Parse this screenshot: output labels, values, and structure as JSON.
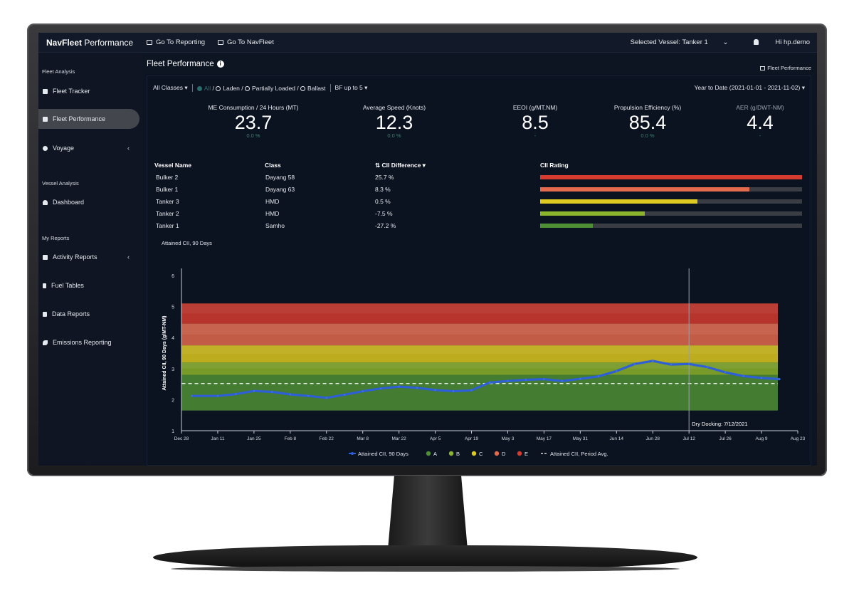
{
  "colors": {
    "A": "#4f8f36",
    "B": "#8bb32b",
    "C": "#ddc91f",
    "D": "#e46a4d",
    "E": "#d63b2f",
    "series": "#2e5fd6"
  },
  "topbar": {
    "brand_bold": "NavFleet",
    "brand_rest": " Performance",
    "link_reporting": "Go To Reporting",
    "link_navfleet": "Go To NavFleet",
    "selected_vessel": "Selected Vessel: Tanker 1",
    "user": "Hi hp.demo"
  },
  "sidebar": {
    "section_fleet": "Fleet Analysis",
    "fleet_tracker": "Fleet Tracker",
    "fleet_performance": "Fleet Performance",
    "voyage": "Voyage",
    "section_vessel": "Vessel Analysis",
    "dashboard": "Dashboard",
    "section_reports": "My Reports",
    "activity_reports": "Activity Reports",
    "fuel_tables": "Fuel Tables",
    "data_reports": "Data Reports",
    "emissions_reporting": "Emissions Reporting"
  },
  "main": {
    "title": "Fleet Performance",
    "top_link": "Fleet Performance",
    "filters": {
      "classes": "All Classes",
      "all": "All",
      "laden": "Laden",
      "partially_loaded": "Partially Loaded",
      "ballast": "Ballast",
      "bf": "BF up to 5",
      "date_range": "Year to Date (2021-01-01 - 2021-11-02)"
    },
    "kpis": [
      {
        "label": "ME Consumption / 24 Hours (MT)",
        "value": "23.7",
        "change": "0.0 %"
      },
      {
        "label": "Average Speed (Knots)",
        "value": "12.3",
        "change": "0.0 %"
      },
      {
        "label": "EEOI (g/MT.NM)",
        "value": "8.5",
        "change": "-"
      },
      {
        "label": "Propulsion Efficiency (%)",
        "value": "85.4",
        "change": "0.0 %"
      },
      {
        "label": "AER (g/DWT-NM)",
        "value": "4.4",
        "change": "-"
      }
    ],
    "table": {
      "headers": {
        "vessel": "Vessel Name",
        "class": "Class",
        "diff": "CII Difference",
        "rating": "CII Rating"
      },
      "rows": [
        {
          "vessel": "Bulker 2",
          "class": "Dayang 58",
          "diff": "25.7 %",
          "rating_fraction": 1.0,
          "rating": "E"
        },
        {
          "vessel": "Bulker 1",
          "class": "Dayang 63",
          "diff": "8.3 %",
          "rating_fraction": 0.8,
          "rating": "D"
        },
        {
          "vessel": "Tanker 3",
          "class": "HMD",
          "diff": "0.5 %",
          "rating_fraction": 0.6,
          "rating": "C"
        },
        {
          "vessel": "Tanker 2",
          "class": "HMD",
          "diff": "-7.5 %",
          "rating_fraction": 0.4,
          "rating": "B"
        },
        {
          "vessel": "Tanker 1",
          "class": "Samho",
          "diff": "-27.2 %",
          "rating_fraction": 0.2,
          "rating": "A"
        }
      ]
    }
  },
  "chart_data": {
    "type": "line",
    "title": "Attained CII, 90 Days",
    "ylabel": "Attained CII, 90 Days (g/MT-NM)",
    "xlabel": "",
    "ylim": [
      1,
      6
    ],
    "yticks": [
      "1",
      "2",
      "3",
      "4",
      "5",
      "6"
    ],
    "x_tick_labels": [
      "Dec 28",
      "Jan 11",
      "Jan 25",
      "Feb 8",
      "Feb 22",
      "Mar 8",
      "Mar 22",
      "Apr 5",
      "Apr 19",
      "May 3",
      "May 17",
      "May 31",
      "Jun 14",
      "Jun 28",
      "Jul 12",
      "Jul 26",
      "Aug 9",
      "Aug 23"
    ],
    "bands": [
      {
        "name": "A",
        "from": 1.65,
        "to": 2.8
      },
      {
        "name": "B",
        "from": 2.8,
        "to": 3.2
      },
      {
        "name": "C",
        "from": 3.2,
        "to": 3.75
      },
      {
        "name": "D",
        "from": 3.75,
        "to": 4.45
      },
      {
        "name": "E",
        "from": 4.45,
        "to": 5.1
      }
    ],
    "series": [
      {
        "name": "Attained CII, 90 Days",
        "x": [
          "Jan 1",
          "Jan 11",
          "Jan 18",
          "Jan 25",
          "Feb 1",
          "Feb 8",
          "Feb 15",
          "Feb 22",
          "Mar 1",
          "Mar 8",
          "Mar 15",
          "Mar 22",
          "Mar 29",
          "Apr 5",
          "Apr 12",
          "Apr 19",
          "Apr 26",
          "May 3",
          "May 10",
          "May 17",
          "May 24",
          "May 31",
          "Jun 7",
          "Jun 14",
          "Jun 21",
          "Jun 28",
          "Jul 5",
          "Jul 12",
          "Jul 19",
          "Jul 26",
          "Aug 2",
          "Aug 9",
          "Aug 16"
        ],
        "values": [
          2.12,
          2.12,
          2.18,
          2.28,
          2.25,
          2.17,
          2.12,
          2.06,
          2.16,
          2.27,
          2.36,
          2.42,
          2.38,
          2.31,
          2.27,
          2.3,
          2.55,
          2.6,
          2.64,
          2.66,
          2.6,
          2.67,
          2.75,
          2.92,
          3.15,
          3.25,
          3.13,
          3.15,
          3.05,
          2.88,
          2.76,
          2.7,
          2.66
        ]
      }
    ],
    "period_avg": {
      "name": "Attained CII, Period Avg.",
      "value": 2.52
    },
    "annotation": {
      "label": "Dry Docking: 7/12/2021",
      "x": "Jul 12"
    },
    "legend": [
      "Attained CII, 90 Days",
      "A",
      "B",
      "C",
      "D",
      "E",
      "Attained CII, Period Avg."
    ],
    "legend_position": "bottom"
  }
}
